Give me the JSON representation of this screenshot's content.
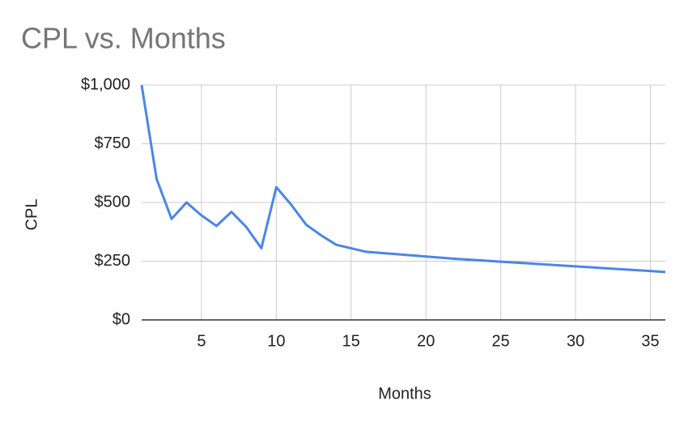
{
  "chart_data": {
    "type": "line",
    "title": "CPL vs. Months",
    "x_label": "Months",
    "y_label": "CPL",
    "x": [
      1,
      2,
      3,
      4,
      5,
      6,
      7,
      8,
      9,
      10,
      11,
      12,
      13,
      14,
      15,
      16,
      17,
      18,
      19,
      20,
      21,
      22,
      23,
      24,
      25,
      26,
      27,
      28,
      29,
      30,
      31,
      32,
      33,
      34,
      35,
      36
    ],
    "series": [
      {
        "name": "CPL",
        "color": "#4a86e8",
        "values": [
          1000,
          600,
          430,
          500,
          445,
          400,
          460,
          395,
          305,
          565,
          490,
          405,
          360,
          320,
          305,
          290,
          285,
          280,
          275,
          270,
          265,
          260,
          256,
          252,
          248,
          244,
          240,
          236,
          232,
          228,
          224,
          220,
          216,
          212,
          208,
          204
        ]
      }
    ],
    "xlim": [
      1,
      36
    ],
    "xticks": [
      5,
      10,
      15,
      20,
      25,
      30,
      35
    ],
    "ylim": [
      0,
      1000
    ],
    "yticks": [
      {
        "value": 0,
        "label": "$0"
      },
      {
        "value": 250,
        "label": "$250"
      },
      {
        "value": 500,
        "label": "$500"
      },
      {
        "value": 750,
        "label": "$750"
      },
      {
        "value": 1000,
        "label": "$1,000"
      }
    ],
    "grid": true
  }
}
